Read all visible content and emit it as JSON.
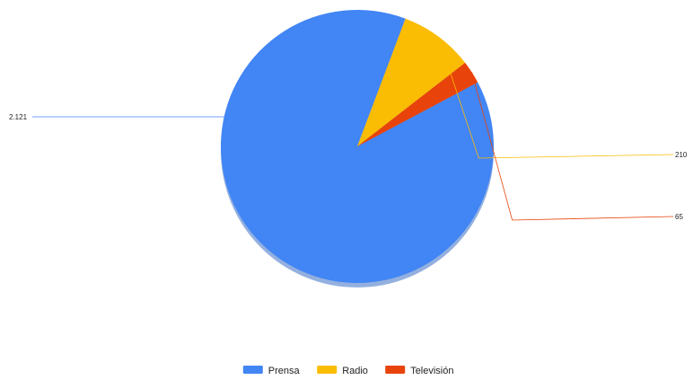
{
  "chart_data": {
    "type": "pie",
    "title": "",
    "legend_position": "bottom",
    "slices": [
      {
        "label": "Prensa",
        "value": 2121,
        "value_label": "2.121",
        "color": "#4285f4"
      },
      {
        "label": "Radio",
        "value": 210,
        "value_label": "210",
        "color": "#fbbc04"
      },
      {
        "label": "Televisión",
        "value": 65,
        "value_label": "65",
        "color": "#e8430a"
      }
    ]
  }
}
